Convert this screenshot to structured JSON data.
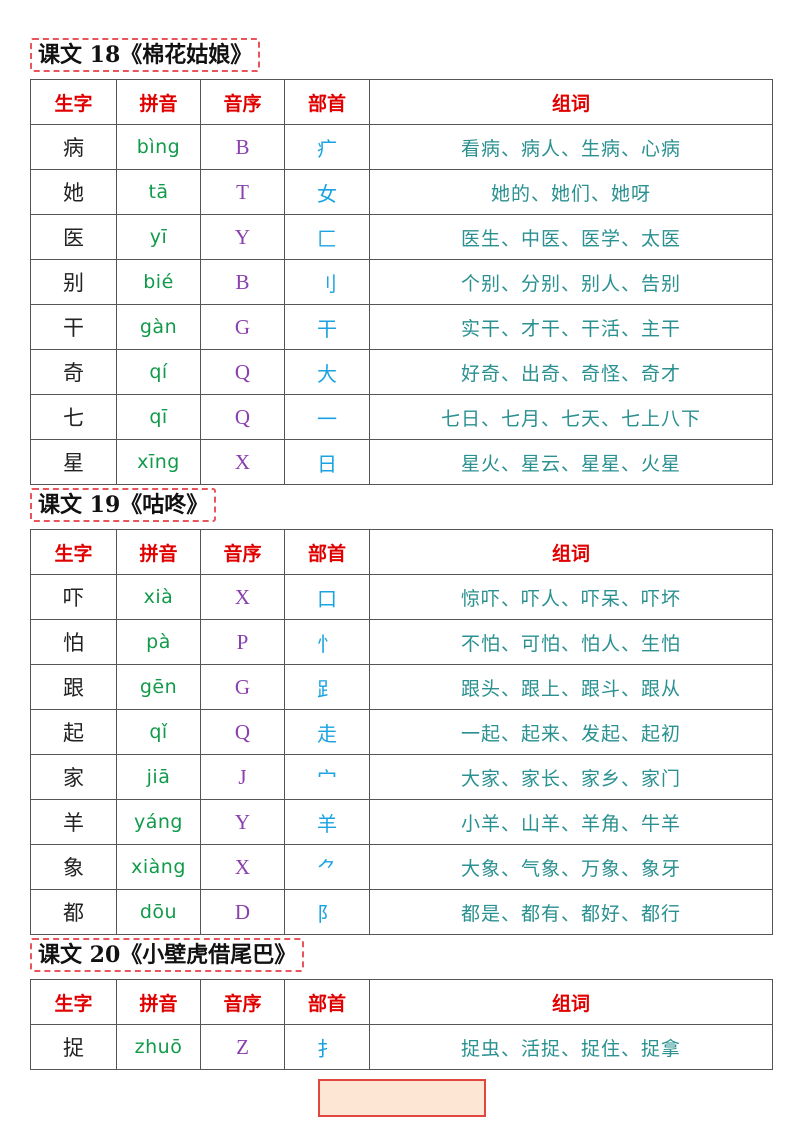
{
  "headers": [
    "生字",
    "拼音",
    "音序",
    "部首",
    "组词"
  ],
  "lessons": [
    {
      "title": "课文 18《棉花姑娘》",
      "rows": [
        {
          "char": "病",
          "pinyin": "bìng",
          "order": "B",
          "radical": "疒",
          "words": "看病、病人、生病、心病"
        },
        {
          "char": "她",
          "pinyin": "tā",
          "order": "T",
          "radical": "女",
          "words": "她的、她们、她呀"
        },
        {
          "char": "医",
          "pinyin": "yī",
          "order": "Y",
          "radical": "匚",
          "words": "医生、中医、医学、太医"
        },
        {
          "char": "别",
          "pinyin": "bié",
          "order": "B",
          "radical": "刂",
          "words": "个别、分别、别人、告别"
        },
        {
          "char": "干",
          "pinyin": "gàn",
          "order": "G",
          "radical": "干",
          "words": "实干、才干、干活、主干"
        },
        {
          "char": "奇",
          "pinyin": "qí",
          "order": "Q",
          "radical": "大",
          "words": "好奇、出奇、奇怪、奇才"
        },
        {
          "char": "七",
          "pinyin": "qī",
          "order": "Q",
          "radical": "一",
          "words": "七日、七月、七天、七上八下"
        },
        {
          "char": "星",
          "pinyin": "xīng",
          "order": "X",
          "radical": "日",
          "words": "星火、星云、星星、火星"
        }
      ]
    },
    {
      "title": "课文 19《咕咚》",
      "rows": [
        {
          "char": "吓",
          "pinyin": "xià",
          "order": "X",
          "radical": "口",
          "words": "惊吓、吓人、吓呆、吓坏"
        },
        {
          "char": "怕",
          "pinyin": "pà",
          "order": "P",
          "radical": "忄",
          "words": "不怕、可怕、怕人、生怕"
        },
        {
          "char": "跟",
          "pinyin": "gēn",
          "order": "G",
          "radical": "⻊",
          "words": "跟头、跟上、跟斗、跟从"
        },
        {
          "char": "起",
          "pinyin": "qǐ",
          "order": "Q",
          "radical": "走",
          "words": "一起、起来、发起、起初"
        },
        {
          "char": "家",
          "pinyin": "jiā",
          "order": "J",
          "radical": "宀",
          "words": "大家、家长、家乡、家门"
        },
        {
          "char": "羊",
          "pinyin": "yáng",
          "order": "Y",
          "radical": "羊",
          "words": "小羊、山羊、羊角、牛羊"
        },
        {
          "char": "象",
          "pinyin": "xiàng",
          "order": "X",
          "radical": "⺈",
          "words": "大象、气象、万象、象牙"
        },
        {
          "char": "都",
          "pinyin": "dōu",
          "order": "D",
          "radical": "阝",
          "words": "都是、都有、都好、都行"
        }
      ]
    },
    {
      "title": "课文 20《小壁虎借尾巴》",
      "rows": [
        {
          "char": "捉",
          "pinyin": "zhuō",
          "order": "Z",
          "radical": "扌",
          "words": "捉虫、活捉、捉住、捉拿"
        }
      ]
    }
  ]
}
